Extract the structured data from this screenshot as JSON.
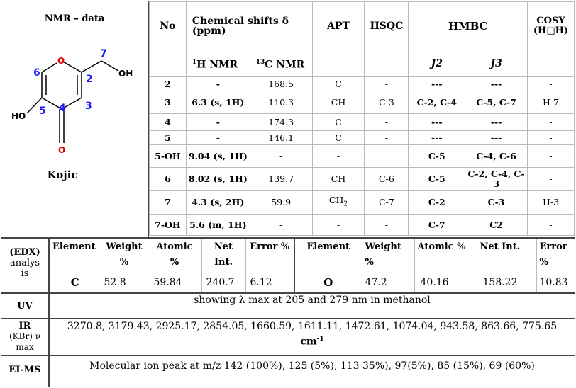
{
  "left_panel": {
    "title": "NMR – data",
    "compound_name": "Kojic",
    "structure_labels": {
      "O_ring": "O",
      "O_carbonyl": "O",
      "OH_right": "OH",
      "HO_left": "HO",
      "n2": "2",
      "n3": "3",
      "n4": "4",
      "n5": "5",
      "n6": "6",
      "n7": "7"
    }
  },
  "nmr_table": {
    "headers": {
      "no": "No",
      "shifts": "Chemical shifts δ (ppm)",
      "apt": "APT",
      "hsqc": "HSQC",
      "hmbc": "HMBC",
      "cosy": "COSY (H□H)",
      "h_nmr": "H NMR",
      "h_sup": "1",
      "c_nmr": "C NMR",
      "c_sup": "13",
      "j2": "J2",
      "j3": "J3"
    },
    "rows": [
      {
        "no": "2",
        "h": "-",
        "c": "168.5",
        "apt": "C",
        "hsqc": "-",
        "j2": "---",
        "j3": "---",
        "cosy": "-"
      },
      {
        "no": "3",
        "h": "6.3 (s, 1H)",
        "c": "110.3",
        "apt": "CH",
        "hsqc": "C-3",
        "j2": "C-2, C-4",
        "j3": "C-5, C-7",
        "cosy": "H-7"
      },
      {
        "no": "4",
        "h": "-",
        "c": "174.3",
        "apt": "C",
        "hsqc": "-",
        "j2": "---",
        "j3": "---",
        "cosy": "-"
      },
      {
        "no": "5",
        "h": "-",
        "c": "146.1",
        "apt": "C",
        "hsqc": "-",
        "j2": "---",
        "j3": "---",
        "cosy": "-"
      },
      {
        "no": "5-OH",
        "h": "9.04 (s, 1H)",
        "c": "-",
        "apt": "-",
        "hsqc": "",
        "j2": "C-5",
        "j3": "C-4, C-6",
        "cosy": "-"
      },
      {
        "no": "6",
        "h": "8.02 (s, 1H)",
        "c": "139.7",
        "apt": "CH",
        "hsqc": "C-6",
        "j2": "C-5",
        "j3": "C-2, C-4, C-3",
        "cosy": "-"
      },
      {
        "no": "7",
        "h": "4.3 (s, 2H)",
        "c": "59.9",
        "apt": "CH",
        "apt_sub": "2",
        "hsqc": "C-7",
        "j2": "C-2",
        "j3": "C-3",
        "cosy": "H-3"
      },
      {
        "no": "7-OH",
        "h": "5.6 (m, 1H)",
        "c": "-",
        "apt": "-",
        "hsqc": "-",
        "j2": "C-7",
        "j3": "C2",
        "cosy": "-"
      }
    ]
  },
  "edx": {
    "label": "(EDX)",
    "label2": "analysis",
    "headers": [
      "Element",
      "Weight %",
      "Atomic %",
      "Net Int.",
      "Error %"
    ],
    "left": {
      "element": "C",
      "weight": "52.8",
      "atomic": "59.84",
      "net": "240.7",
      "error": "6.12"
    },
    "right": {
      "element": "O",
      "weight": "47.2",
      "atomic": "40.16",
      "net": "158.22",
      "error": "10.83"
    }
  },
  "uv": {
    "label": "UV",
    "text": "showing λ max  at 205 and 279 nm in methanol"
  },
  "ir": {
    "label": "IR",
    "label2": "(KBr) ν max",
    "text": "3270.8, 3179.43, 2925.17, 2854.05, 1660.59, 1611.11, 1472.61, 1074.04, 943.58, 863.66, 775.65",
    "unit": "cm",
    "unit_sup": "-1"
  },
  "eims": {
    "label": "EI-MS",
    "text": "Molecular ion peak at m/z 142 (100%), 125 (5%), 113 35%), 97(5%), 85 (15%), 69 (60%)"
  }
}
